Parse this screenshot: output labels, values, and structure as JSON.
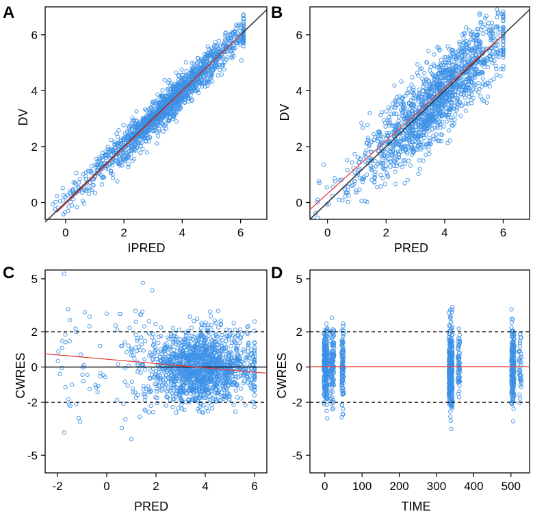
{
  "colors": {
    "points": "#3c91e6",
    "identity_line": "#333333",
    "smooth_line": "#e8413c",
    "zero_line": "#000000",
    "dashed": "#000000"
  },
  "chart_data": [
    {
      "panel": "A",
      "type": "scatter",
      "xlabel": "IPRED",
      "ylabel": "DV",
      "xlim": [
        -0.7,
        6.9
      ],
      "ylim": [
        -0.6,
        7.0
      ],
      "xticks": [
        0,
        2,
        4,
        6
      ],
      "yticks": [
        0,
        2,
        4,
        6
      ],
      "ref_lines": [
        {
          "kind": "identity",
          "color": "#333333",
          "from": [
            -0.7,
            -0.7
          ],
          "to": [
            6.9,
            6.9
          ]
        },
        {
          "kind": "smooth",
          "color": "#e8413c",
          "from": [
            -0.3,
            -0.35
          ],
          "to": [
            6.0,
            6.0
          ]
        }
      ],
      "synthetic": {
        "n": 1500,
        "x_center": 3.6,
        "x_sd": 1.3,
        "x_min": -0.6,
        "x_max": 6.1,
        "slope": 1.0,
        "intercept": 0.0,
        "noise_sd": 0.3
      }
    },
    {
      "panel": "B",
      "type": "scatter",
      "xlabel": "PRED",
      "ylabel": "DV",
      "xlim": [
        -0.6,
        6.9
      ],
      "ylim": [
        -0.6,
        7.0
      ],
      "xticks": [
        0,
        2,
        4,
        6
      ],
      "yticks": [
        0,
        2,
        4,
        6
      ],
      "ref_lines": [
        {
          "kind": "identity",
          "color": "#333333",
          "from": [
            -0.6,
            -0.6
          ],
          "to": [
            6.9,
            6.9
          ]
        },
        {
          "kind": "smooth",
          "color": "#e8413c",
          "from": [
            -0.6,
            -0.25
          ],
          "to": [
            6.0,
            6.0
          ]
        }
      ],
      "synthetic": {
        "n": 1500,
        "x_center": 3.7,
        "x_sd": 1.2,
        "x_min": -0.5,
        "x_max": 6.0,
        "slope": 1.0,
        "intercept": 0.0,
        "noise_sd": 0.7
      }
    },
    {
      "panel": "C",
      "type": "scatter",
      "xlabel": "PRED",
      "ylabel": "CWRES",
      "xlim": [
        -2.5,
        6.5
      ],
      "ylim": [
        -6.0,
        5.5
      ],
      "xticks": [
        -2,
        0,
        2,
        4,
        6
      ],
      "yticks": [
        -5,
        -2,
        0,
        2,
        5
      ],
      "ref_lines": [
        {
          "kind": "zero",
          "color": "#000000",
          "from": [
            -2.5,
            0
          ],
          "to": [
            6.5,
            0
          ]
        },
        {
          "kind": "dashed",
          "color": "#000000",
          "from": [
            -2.5,
            2
          ],
          "to": [
            6.5,
            2
          ]
        },
        {
          "kind": "dashed",
          "color": "#000000",
          "from": [
            -2.5,
            -2
          ],
          "to": [
            6.5,
            -2
          ]
        },
        {
          "kind": "smooth",
          "color": "#e8413c",
          "from": [
            -2.5,
            0.75
          ],
          "to": [
            6.5,
            -0.35
          ]
        }
      ],
      "synthetic": {
        "n": 1500,
        "x_center": 3.8,
        "x_sd": 1.1,
        "x_min": -2.0,
        "x_max": 6.0,
        "slope": 0,
        "intercept": 0,
        "noise_sd": 1.0
      }
    },
    {
      "panel": "D",
      "type": "scatter",
      "xlabel": "TIME",
      "ylabel": "CWRES",
      "xlim": [
        -40,
        550
      ],
      "ylim": [
        -6.0,
        5.5
      ],
      "xticks": [
        0,
        100,
        200,
        300,
        400,
        500
      ],
      "yticks": [
        -5,
        -2,
        0,
        2,
        5
      ],
      "ref_lines": [
        {
          "kind": "dashed",
          "color": "#000000",
          "from": [
            -40,
            2
          ],
          "to": [
            550,
            2
          ]
        },
        {
          "kind": "dashed",
          "color": "#000000",
          "from": [
            -40,
            -2
          ],
          "to": [
            550,
            -2
          ]
        },
        {
          "kind": "smooth",
          "color": "#e8413c",
          "from": [
            -40,
            0.02
          ],
          "to": [
            550,
            0.02
          ]
        }
      ],
      "time_clusters": [
        {
          "center": 2,
          "spread": 5,
          "n": 260,
          "sd": 1.0
        },
        {
          "center": 20,
          "spread": 5,
          "n": 120,
          "sd": 1.0
        },
        {
          "center": 48,
          "spread": 3,
          "n": 110,
          "sd": 1.1
        },
        {
          "center": 338,
          "spread": 5,
          "n": 320,
          "sd": 1.3
        },
        {
          "center": 360,
          "spread": 3,
          "n": 60,
          "sd": 1.0
        },
        {
          "center": 505,
          "spread": 4,
          "n": 200,
          "sd": 1.1
        },
        {
          "center": 525,
          "spread": 3,
          "n": 40,
          "sd": 0.9
        }
      ]
    }
  ]
}
